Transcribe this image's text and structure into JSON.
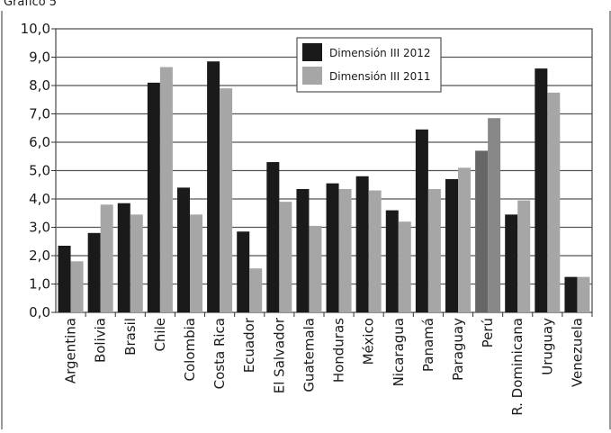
{
  "chart_data": {
    "type": "bar",
    "title": "",
    "xlabel": "",
    "ylabel": "",
    "ylim": [
      0,
      10
    ],
    "yticks": [
      "0,0",
      "1,0",
      "2,0",
      "3,0",
      "4,0",
      "5,0",
      "6,0",
      "7,0",
      "8,0",
      "9,0",
      "10,0"
    ],
    "grid": "horizontal",
    "legend_position": "top-right",
    "categories": [
      "Argentina",
      "Bolivia",
      "Brasil",
      "Chile",
      "Colombia",
      "Costa Rica",
      "Ecuador",
      "El Salvador",
      "Guatemala",
      "Honduras",
      "México",
      "Nicaragua",
      "Panamá",
      "Paraguay",
      "Perú",
      "R. Dominicana",
      "Uruguay",
      "Venezuela"
    ],
    "series": [
      {
        "name": "Dimensión III 2012",
        "color": "#1a1a1a",
        "values": [
          2.35,
          2.8,
          3.85,
          8.1,
          4.4,
          8.85,
          2.85,
          5.3,
          4.35,
          4.55,
          4.8,
          3.6,
          6.45,
          4.7,
          5.7,
          3.45,
          8.6,
          1.25
        ]
      },
      {
        "name": "Dimensión III 2011",
        "color": "#a6a6a6",
        "values": [
          1.8,
          3.8,
          3.45,
          8.65,
          3.45,
          7.9,
          1.55,
          3.9,
          3.05,
          4.35,
          4.3,
          3.2,
          4.35,
          5.1,
          6.85,
          3.95,
          7.75,
          1.25
        ]
      }
    ],
    "special_bar_colors": {
      "Perú": [
        "#666666",
        "#888888"
      ]
    },
    "top_fragment": "Gráfico 5"
  }
}
